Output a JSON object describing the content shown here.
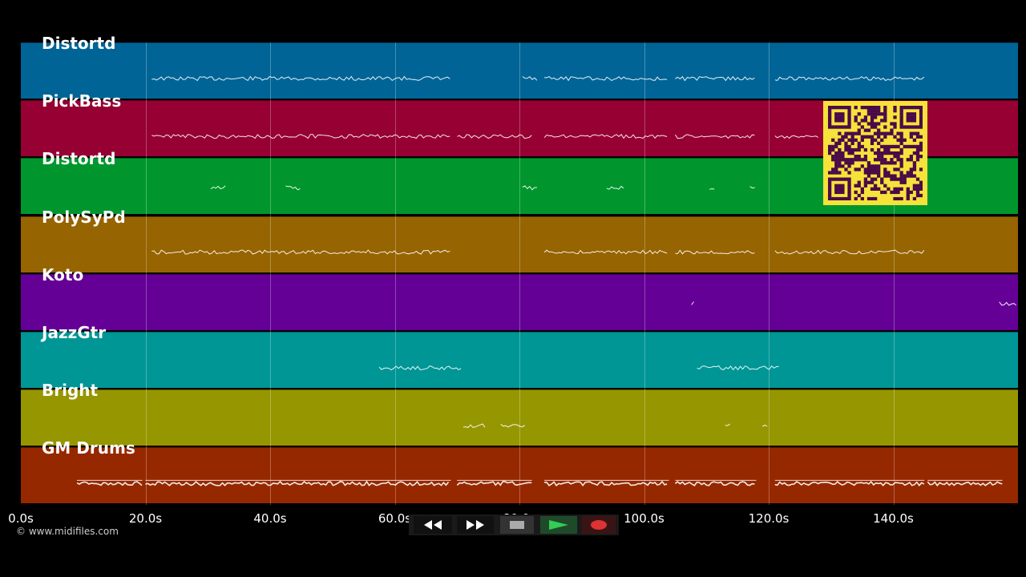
{
  "timeline": {
    "max_seconds": 160,
    "ticks": [
      "0.0s",
      "20.0s",
      "40.0s",
      "60.0s",
      "80.0s",
      "100.0s",
      "120.0s",
      "140.0s"
    ],
    "tick_seconds": [
      0,
      20,
      40,
      60,
      80,
      100,
      120,
      140
    ]
  },
  "tracks": [
    {
      "name": "Distortd",
      "color": "#006496",
      "notes": [
        [
          21,
          69
        ],
        [
          80.5,
          83
        ],
        [
          84,
          104
        ],
        [
          105,
          118
        ],
        [
          121,
          145
        ]
      ]
    },
    {
      "name": "PickBass",
      "color": "#960032",
      "notes": [
        [
          21,
          69
        ],
        [
          70,
          82
        ],
        [
          84,
          104
        ],
        [
          105,
          118
        ],
        [
          121,
          128
        ]
      ]
    },
    {
      "name": "Distortd",
      "color": "#00962d",
      "notes": [
        [
          30.5,
          33
        ],
        [
          42.5,
          45
        ],
        [
          80.5,
          83
        ],
        [
          94,
          97
        ],
        [
          110.5,
          111.5
        ],
        [
          117,
          118
        ]
      ]
    },
    {
      "name": "PolySyPd",
      "color": "#966400",
      "notes": [
        [
          21,
          69
        ],
        [
          84,
          104
        ],
        [
          105,
          118
        ],
        [
          121,
          145
        ]
      ]
    },
    {
      "name": "Koto",
      "color": "#640096",
      "notes": [
        [
          107.6,
          108.3
        ],
        [
          157,
          160
        ]
      ]
    },
    {
      "name": "JazzGtr",
      "color": "#009696",
      "notes": [
        [
          57.5,
          71
        ],
        [
          108.5,
          122
        ]
      ]
    },
    {
      "name": "Bright",
      "color": "#969600",
      "notes": [
        [
          71,
          74.5
        ],
        [
          77,
          81
        ],
        [
          113,
          114
        ],
        [
          119,
          120
        ]
      ]
    },
    {
      "name": "GM Drums",
      "color": "#962800",
      "notes": [
        [
          9,
          19.5
        ],
        [
          20,
          69
        ],
        [
          70,
          82
        ],
        [
          84,
          104
        ],
        [
          105,
          118
        ],
        [
          121,
          145
        ],
        [
          145.5,
          157.5
        ]
      ]
    }
  ],
  "copyright": "© www.midifiles.com",
  "transport": {
    "rewind": "rewind-icon",
    "fast_forward": "fast-forward-icon",
    "stop": "stop-icon",
    "play": "play-icon",
    "record": "record-icon"
  },
  "colors": {
    "play": "#22aa44",
    "record": "#dd3333",
    "qr_fg": "#4a0a4a",
    "qr_bg": "#f5e23a"
  }
}
